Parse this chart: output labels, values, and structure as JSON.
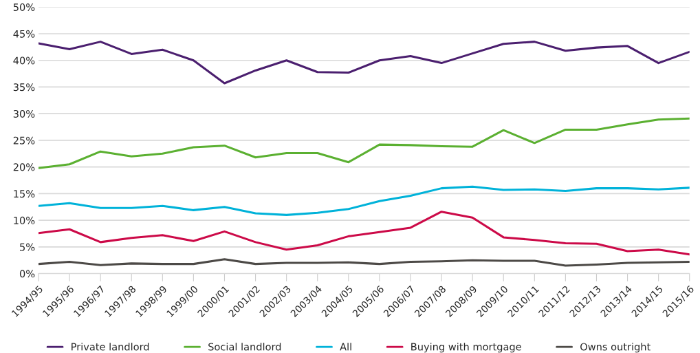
{
  "chart_data": {
    "type": "line",
    "categories": [
      "1994/95",
      "1995/96",
      "1996/97",
      "1997/98",
      "1998/99",
      "1999/00",
      "2000/01",
      "2001/02",
      "2002/03",
      "2003/04",
      "2004/05",
      "2005/06",
      "2006/07",
      "2007/08",
      "2008/09",
      "2009/10",
      "2010/11",
      "2011/12",
      "2012/13",
      "2013/14",
      "2014/15",
      "2015/16"
    ],
    "series": [
      {
        "name": "Private landlord",
        "color": "#4b1f6f",
        "values": [
          43.2,
          42.1,
          43.5,
          41.2,
          42.0,
          40.0,
          35.7,
          38.1,
          40.0,
          37.8,
          37.7,
          40.0,
          40.8,
          39.5,
          41.3,
          43.1,
          43.5,
          41.8,
          42.4,
          42.7,
          39.5,
          41.6
        ]
      },
      {
        "name": "Social landlord",
        "color": "#5bb031",
        "values": [
          19.8,
          20.5,
          22.9,
          22.0,
          22.5,
          23.7,
          24.0,
          21.8,
          22.6,
          22.6,
          20.9,
          24.2,
          24.1,
          23.9,
          23.8,
          26.9,
          24.5,
          27.0,
          27.0,
          28.0,
          28.9,
          29.1
        ]
      },
      {
        "name": "All",
        "color": "#00b2d9",
        "values": [
          12.7,
          13.2,
          12.3,
          12.3,
          12.7,
          11.9,
          12.5,
          11.3,
          11.0,
          11.4,
          12.1,
          13.6,
          14.6,
          16.0,
          16.3,
          15.7,
          15.8,
          15.5,
          16.0,
          16.0,
          15.8,
          16.1
        ]
      },
      {
        "name": "Buying with mortgage",
        "color": "#cc0a48",
        "values": [
          7.6,
          8.3,
          5.9,
          6.7,
          7.2,
          6.1,
          7.9,
          5.9,
          4.5,
          5.3,
          7.0,
          7.8,
          8.6,
          11.6,
          10.5,
          6.8,
          6.3,
          5.7,
          5.6,
          4.2,
          4.5,
          3.6
        ]
      },
      {
        "name": "Owns outright",
        "color": "#4d4a47",
        "values": [
          1.8,
          2.2,
          1.6,
          1.9,
          1.8,
          1.8,
          2.7,
          1.8,
          2.0,
          2.0,
          2.1,
          1.8,
          2.2,
          2.3,
          2.5,
          2.4,
          2.4,
          1.5,
          1.7,
          2.0,
          2.1,
          2.2
        ]
      }
    ],
    "ylim": [
      0,
      50
    ],
    "yticks": [
      {
        "value": 0,
        "label": "0%"
      },
      {
        "value": 5,
        "label": "5%"
      },
      {
        "value": 10,
        "label": "10%"
      },
      {
        "value": 15,
        "label": "15%"
      },
      {
        "value": 20,
        "label": "20%"
      },
      {
        "value": 25,
        "label": "25%"
      },
      {
        "value": 30,
        "label": "30%"
      },
      {
        "value": 35,
        "label": "35%"
      },
      {
        "value": 40,
        "label": "40%"
      },
      {
        "value": 45,
        "label": "45%"
      },
      {
        "value": 50,
        "label": "50%"
      }
    ],
    "grid": "y",
    "legend": "bottom",
    "marker": "none",
    "line_style": "solid"
  }
}
